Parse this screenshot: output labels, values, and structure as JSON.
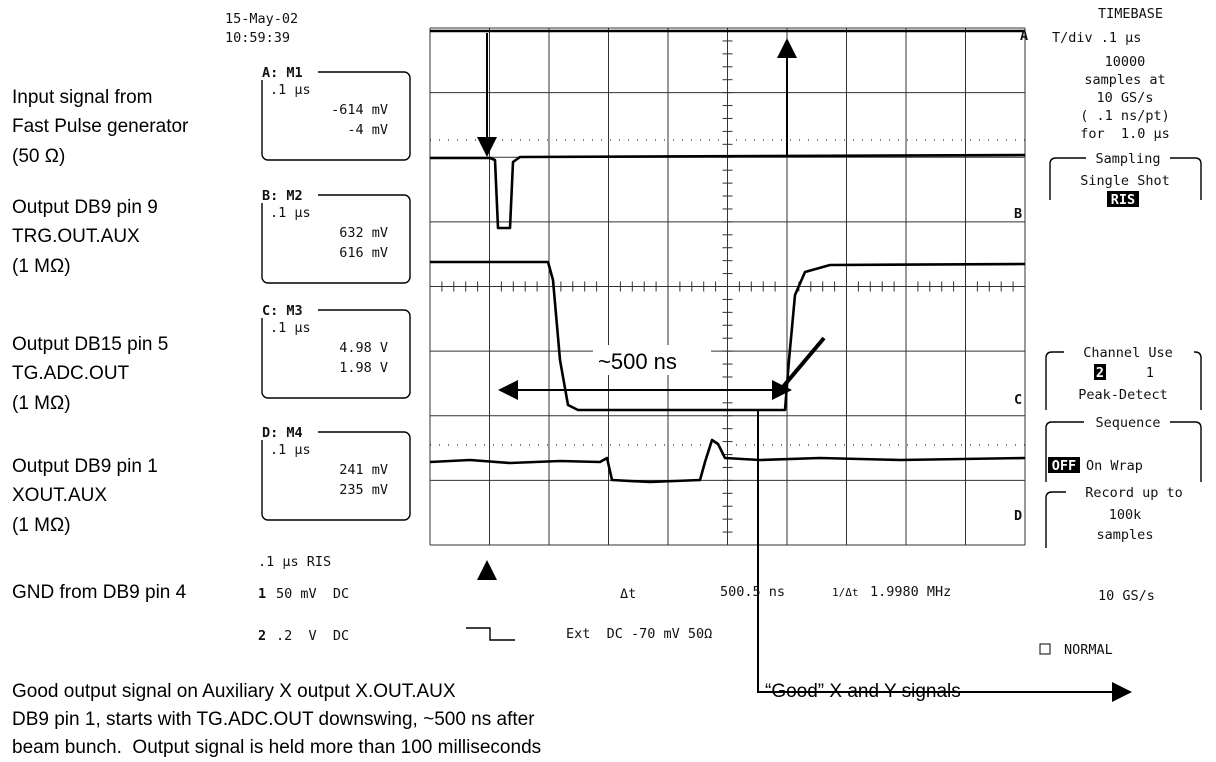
{
  "header": {
    "date": "15-May-02",
    "time": "10:59:39"
  },
  "annotations": {
    "inputs": [
      [
        "Input signal from",
        "Fast Pulse generator",
        "(50 Ω)"
      ],
      [
        "Output DB9 pin 9",
        "TRG.OUT.AUX",
        "(1 MΩ)"
      ],
      [
        "Output DB15 pin 5",
        "TG.ADC.OUT",
        "(1 MΩ)"
      ],
      [
        "Output DB9 pin 1",
        "XOUT.AUX",
        "(1 MΩ)"
      ]
    ],
    "ground": "GND from DB9 pin 4",
    "delay": "~500 ns",
    "notes": [
      "Good output signal on Auxiliary X output X.OUT.AUX",
      "DB9 pin 1, starts with TG.ADC.OUT downswing, ~500 ns after",
      "beam bunch.  Output signal is held more than 100 milliseconds"
    ],
    "good": "“Good” X and Y signals"
  },
  "channels": [
    {
      "label": "A: M1",
      "tdiv": ".1 µs",
      "v1": "-614 mV",
      "v2": "-4 mV"
    },
    {
      "label": "B: M2",
      "tdiv": ".1 µs",
      "v1": "632 mV",
      "v2": "616 mV"
    },
    {
      "label": "C: M3",
      "tdiv": ".1 µs",
      "v1": "4.98 V",
      "v2": "1.98 V"
    },
    {
      "label": "D: M4",
      "tdiv": ".1 µs",
      "v1": "241 mV",
      "v2": "235 mV"
    }
  ],
  "trace_markers": [
    "A",
    "B",
    "C",
    "D"
  ],
  "status": {
    "mode": ".1 µs RIS",
    "ch1_num": "1",
    "ch1": "50 mV  DC",
    "ch2_num": "2",
    "ch2": ".2  V  DC",
    "ext": "Ext  DC -70 mV 50Ω",
    "dt_label": "Δt",
    "dt": "500.5 ns",
    "freq_label": "1/Δt",
    "freq": "1.9980 MHz",
    "rate": "10 GS/s",
    "trigger": "NORMAL"
  },
  "panel": {
    "title": "TIMEBASE",
    "tdiv": "T/div .1 µs",
    "samples": [
      "10000",
      "samples at",
      "10 GS/s",
      "( .1 ns/pt)",
      "for  1.0 µs"
    ],
    "sampling": {
      "title": "Sampling",
      "mode": "Single Shot",
      "selected": "RIS"
    },
    "channel_use": {
      "title": "Channel Use",
      "selected": "2",
      "other": "1",
      "mode": "Peak-Detect"
    },
    "sequence": {
      "title": "Sequence",
      "selected": "OFF",
      "options": "On Wrap"
    },
    "record": {
      "title": "Record up to",
      "lines": [
        "100k",
        "samples"
      ]
    }
  }
}
